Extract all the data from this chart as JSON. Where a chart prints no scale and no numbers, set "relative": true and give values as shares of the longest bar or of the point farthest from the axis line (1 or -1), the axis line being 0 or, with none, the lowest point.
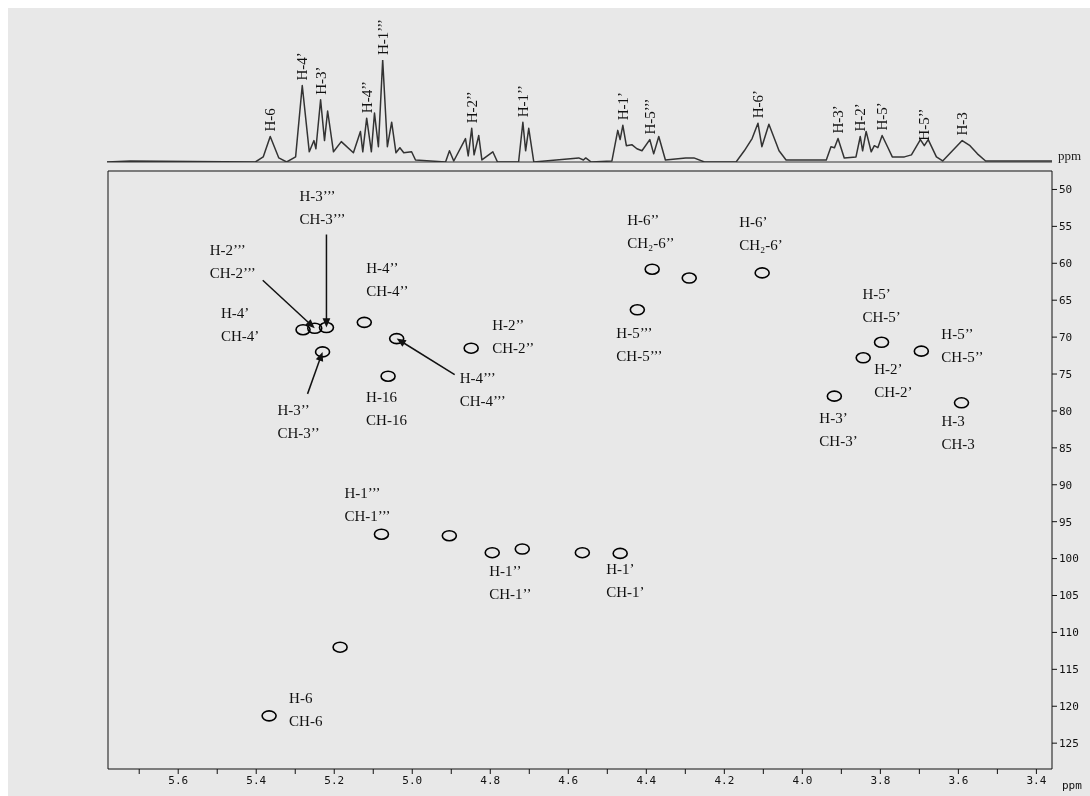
{
  "chart_data": [
    {
      "type": "line",
      "relative": true,
      "tick_labels": false,
      "xlabel": "ppm",
      "xlim": [
        5.78,
        3.36
      ],
      "xticks": [
        5.6,
        5.4,
        5.2,
        5,
        4.8,
        4.6,
        4.4,
        4.2,
        4,
        3.8,
        3.6,
        3.4
      ],
      "color": "#333333",
      "x": [
        5.78,
        5.72,
        5.4,
        5.38,
        5.362,
        5.34,
        5.32,
        5.297,
        5.28,
        5.262,
        5.25,
        5.245,
        5.233,
        5.223,
        5.215,
        5.2,
        5.18,
        5.149,
        5.131,
        5.125,
        5.115,
        5.103,
        5.095,
        5.085,
        5.074,
        5.062,
        5.051,
        5.04,
        5.03,
        5.02,
        5.0,
        4.99,
        4.913,
        4.903,
        4.892,
        4.862,
        4.855,
        4.846,
        4.84,
        4.828,
        4.82,
        4.792,
        4.78,
        4.726,
        4.715,
        4.708,
        4.7,
        4.687,
        4.572,
        4.56,
        4.554,
        4.54,
        4.487,
        4.472,
        4.466,
        4.459,
        4.45,
        4.436,
        4.423,
        4.41,
        4.39,
        4.38,
        4.367,
        4.35,
        4.298,
        4.277,
        4.25,
        4.169,
        4.148,
        4.128,
        4.113,
        4.103,
        4.085,
        4.07,
        4.059,
        4.041,
        3.938,
        3.926,
        3.917,
        3.908,
        3.892,
        3.862,
        3.851,
        3.845,
        3.836,
        3.823,
        3.815,
        3.806,
        3.795,
        3.78,
        3.769,
        3.738,
        3.72,
        3.697,
        3.687,
        3.677,
        3.656,
        3.64,
        3.615,
        3.59,
        3.57,
        3.551,
        3.53,
        3.36
      ],
      "values": [
        0,
        0.01,
        0,
        0.05,
        0.25,
        0.04,
        0,
        0.05,
        0.75,
        0.1,
        0.21,
        0.13,
        0.61,
        0.21,
        0.5,
        0.1,
        0.2,
        0.09,
        0.3,
        0.1,
        0.43,
        0.1,
        0.48,
        0.15,
        1,
        0.15,
        0.39,
        0.09,
        0.14,
        0.09,
        0.1,
        0.02,
        0,
        0.11,
        0.01,
        0.23,
        0.06,
        0.33,
        0.07,
        0.26,
        0.02,
        0.1,
        0,
        0,
        0.39,
        0.11,
        0.33,
        0,
        0.04,
        0.02,
        0.04,
        0,
        0.01,
        0.31,
        0.22,
        0.36,
        0.16,
        0.17,
        0.13,
        0.11,
        0.22,
        0.08,
        0.25,
        0.02,
        0.04,
        0.04,
        0,
        0,
        0.11,
        0.23,
        0.38,
        0.15,
        0.37,
        0.22,
        0.11,
        0.02,
        0.02,
        0.15,
        0.14,
        0.23,
        0.04,
        0.05,
        0.25,
        0.11,
        0.3,
        0.1,
        0.16,
        0.14,
        0.26,
        0.14,
        0.05,
        0.05,
        0.07,
        0.22,
        0.16,
        0.22,
        0.05,
        0.01,
        0.11,
        0.21,
        0.16,
        0.08,
        0.01,
        0.01
      ],
      "annotations": [
        {
          "text": "H-6",
          "x": 5.362,
          "y": 0.25
        },
        {
          "text": "H-4’",
          "x": 5.28,
          "y": 0.75
        },
        {
          "text": "H-3’",
          "x": 5.233,
          "y": 0.61
        },
        {
          "text": "H-4’’",
          "x": 5.115,
          "y": 0.43
        },
        {
          "text": "H-1’’’",
          "x": 5.074,
          "y": 1
        },
        {
          "text": "H-2’’",
          "x": 4.846,
          "y": 0.33
        },
        {
          "text": "H-1’’",
          "x": 4.715,
          "y": 0.39
        },
        {
          "text": "H-1’",
          "x": 4.459,
          "y": 0.36
        },
        {
          "text": "H-5’’’",
          "x": 4.39,
          "y": 0.22
        },
        {
          "text": "H-6’",
          "x": 4.113,
          "y": 0.38
        },
        {
          "text": "H-3’",
          "x": 3.908,
          "y": 0.23
        },
        {
          "text": "H-2’",
          "x": 3.851,
          "y": 0.25
        },
        {
          "text": "H-5’",
          "x": 3.795,
          "y": 0.26
        },
        {
          "text": "H-5’’",
          "x": 3.687,
          "y": 0.16
        },
        {
          "text": "H-3",
          "x": 3.59,
          "y": 0.21
        }
      ]
    },
    {
      "type": "scatter",
      "xlabel": "ppm",
      "color": "#000000",
      "marker": "circle",
      "xlim": [
        5.78,
        3.36
      ],
      "ylim": [
        128.5,
        47.5
      ],
      "xticks": [
        {
          "value": 5.7,
          "label": null
        },
        5.6,
        {
          "value": 5.5,
          "label": null
        },
        5.4,
        {
          "value": 5.3,
          "label": null
        },
        5.2,
        {
          "value": 5.1,
          "label": null
        },
        {
          "value": 5,
          "label": "5.0"
        },
        {
          "value": 4.9,
          "label": null
        },
        4.8,
        {
          "value": 4.7,
          "label": null
        },
        4.6,
        {
          "value": 4.5,
          "label": null
        },
        4.4,
        {
          "value": 4.3,
          "label": null
        },
        4.2,
        {
          "value": 4.1,
          "label": null
        },
        {
          "value": 4,
          "label": "4.0"
        },
        {
          "value": 3.9,
          "label": null
        },
        3.8,
        {
          "value": 3.7,
          "label": null
        },
        3.6,
        {
          "value": 3.5,
          "label": null
        },
        3.4
      ],
      "yticks": [
        50,
        55,
        60,
        65,
        70,
        75,
        80,
        85,
        90,
        95,
        100,
        105,
        110,
        115,
        120,
        125
      ],
      "x": [
        5.367,
        5.079,
        4.718,
        4.467,
        4.385,
        4.103,
        4.423,
        3.797,
        3.844,
        3.695,
        3.918,
        3.592,
        4.849,
        5.062,
        5.04,
        5.23,
        5.123,
        5.28,
        5.25,
        5.22,
        4.29,
        4.905,
        4.795,
        4.564,
        5.185
      ],
      "values": [
        121.3,
        96.7,
        98.7,
        99.3,
        60.8,
        61.3,
        66.3,
        70.7,
        72.8,
        71.9,
        78,
        78.9,
        71.5,
        75.3,
        70.2,
        72,
        68,
        69,
        68.8,
        68.7,
        62,
        96.9,
        99.2,
        99.2,
        112
      ],
      "annotations": [
        {
          "text": "H-6\nCH-6",
          "x": 5.367,
          "y": 121.3
        },
        {
          "text": "H-1’’’\nCH-1’’’",
          "x": 5.079,
          "y": 96.7
        },
        {
          "text": "H-1’’\nCH-1’’",
          "x": 4.718,
          "y": 98.7
        },
        {
          "text": "H-1’\nCH-1’",
          "x": 4.467,
          "y": 99.3
        },
        {
          "text": "H-6’’\nCH₂-6’’",
          "x": 4.385,
          "y": 60.8
        },
        {
          "text": "H-6’\nCH₂-6’",
          "x": 4.103,
          "y": 61.3
        },
        {
          "text": "H-5’’’\nCH-5’’’",
          "x": 4.423,
          "y": 66.3
        },
        {
          "text": "H-5’\nCH-5’",
          "x": 3.797,
          "y": 70.7
        },
        {
          "text": "H-2’\nCH-2’",
          "x": 3.844,
          "y": 72.8
        },
        {
          "text": "H-5’’\nCH-5’’",
          "x": 3.695,
          "y": 71.9
        },
        {
          "text": "H-3’\nCH-3’",
          "x": 3.918,
          "y": 78
        },
        {
          "text": "H-3\nCH-3",
          "x": 3.592,
          "y": 78.9
        },
        {
          "text": "H-2’’\nCH-2’’",
          "x": 4.849,
          "y": 71.5
        },
        {
          "text": "H-16\nCH-16",
          "x": 5.062,
          "y": 75.3
        },
        {
          "text": "H-4’’’\nCH-4’’’",
          "x": 5.04,
          "y": 70.2
        },
        {
          "text": "H-3’’\nCH-3’’",
          "x": 5.23,
          "y": 72
        },
        {
          "text": "H-4’’\nCH-4’’",
          "x": 5.123,
          "y": 68
        },
        {
          "text": "H-4’\nCH-4’",
          "x": 5.28,
          "y": 69
        },
        {
          "text": "H-2’’’\nCH-2’’’",
          "x": 5.25,
          "y": 68.8
        },
        {
          "text": "H-3’’’\nCH-3’’’",
          "x": 5.22,
          "y": 68.7
        }
      ]
    }
  ]
}
